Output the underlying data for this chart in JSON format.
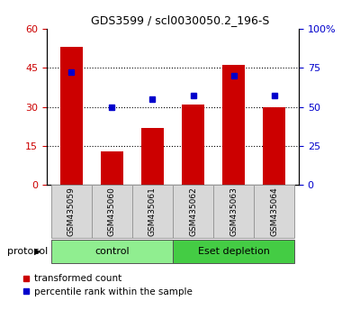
{
  "title": "GDS3599 / scl0030050.2_196-S",
  "samples": [
    "GSM435059",
    "GSM435060",
    "GSM435061",
    "GSM435062",
    "GSM435063",
    "GSM435064"
  ],
  "bar_values": [
    53.0,
    13.0,
    22.0,
    31.0,
    46.0,
    30.0
  ],
  "dot_values": [
    72,
    50,
    55,
    57,
    70,
    57
  ],
  "bar_color": "#cc0000",
  "dot_color": "#0000cc",
  "left_ylim": [
    0,
    60
  ],
  "left_yticks": [
    0,
    15,
    30,
    45,
    60
  ],
  "right_ylim": [
    0,
    100
  ],
  "right_yticks": [
    0,
    25,
    50,
    75,
    100
  ],
  "right_yticklabels": [
    "0",
    "25",
    "50",
    "75",
    "100%"
  ],
  "groups": [
    {
      "label": "control",
      "indices": [
        0,
        1,
        2
      ],
      "color": "#90ee90"
    },
    {
      "label": "Eset depletion",
      "indices": [
        3,
        4,
        5
      ],
      "color": "#44cc44"
    }
  ],
  "protocol_label": "protocol",
  "legend_bar_label": "transformed count",
  "legend_dot_label": "percentile rank within the sample",
  "tick_color_left": "#cc0000",
  "tick_color_right": "#0000cc",
  "sample_box_color": "#d8d8d8",
  "sample_box_edge": "#999999",
  "plot_bg": "#ffffff"
}
